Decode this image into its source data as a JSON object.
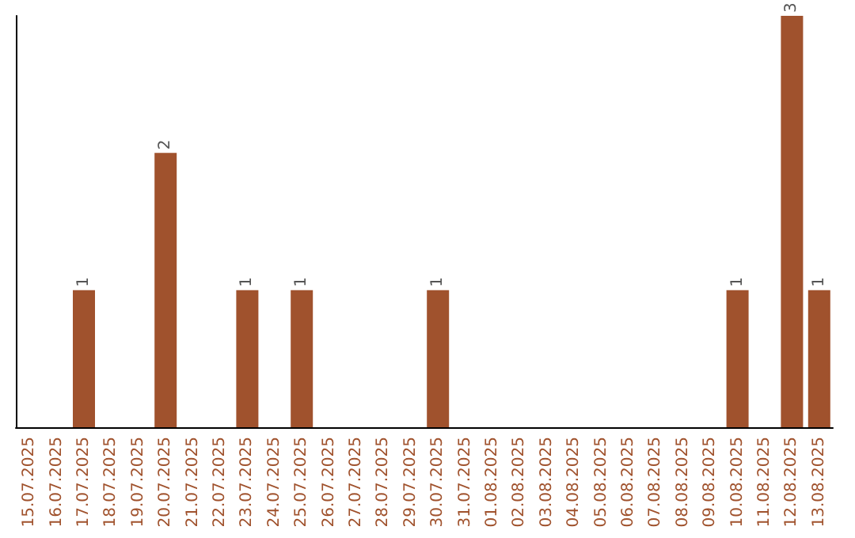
{
  "chart_data": {
    "type": "bar",
    "categories": [
      "15.07.2025",
      "16.07.2025",
      "17.07.2025",
      "18.07.2025",
      "19.07.2025",
      "20.07.2025",
      "21.07.2025",
      "22.07.2025",
      "23.07.2025",
      "24.07.2025",
      "25.07.2025",
      "26.07.2025",
      "27.07.2025",
      "28.07.2025",
      "29.07.2025",
      "30.07.2025",
      "31.07.2025",
      "01.08.2025",
      "02.08.2025",
      "03.08.2025",
      "04.08.2025",
      "05.08.2025",
      "06.08.2025",
      "07.08.2025",
      "08.08.2025",
      "09.08.2025",
      "10.08.2025",
      "11.08.2025",
      "12.08.2025",
      "13.08.2025"
    ],
    "values": [
      0,
      0,
      1,
      0,
      0,
      2,
      0,
      0,
      1,
      0,
      1,
      0,
      0,
      0,
      0,
      1,
      0,
      0,
      0,
      0,
      0,
      0,
      0,
      0,
      0,
      0,
      1,
      0,
      3,
      1
    ],
    "value_labels": [
      null,
      null,
      "1",
      null,
      null,
      "2",
      null,
      null,
      "1",
      null,
      "1",
      null,
      null,
      null,
      null,
      "1",
      null,
      null,
      null,
      null,
      null,
      null,
      null,
      null,
      null,
      null,
      "1",
      null,
      "3",
      "1"
    ],
    "color": "#a0522d",
    "tick_labels": "x"
  }
}
